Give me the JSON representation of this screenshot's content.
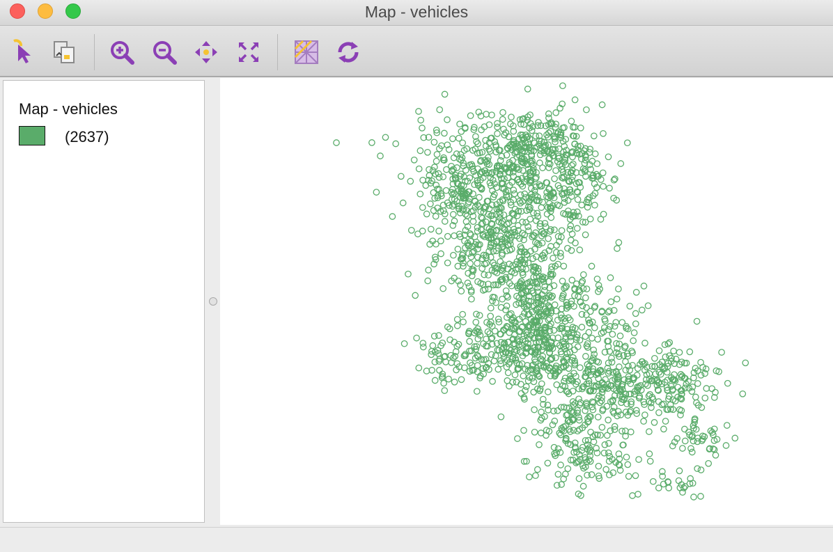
{
  "window": {
    "title": "Map - vehicles"
  },
  "toolbar": {
    "buttons": [
      {
        "icon": "select-pointer-icon",
        "label": "Select"
      },
      {
        "icon": "copy-image-icon",
        "label": "Copy image"
      },
      {
        "icon": "zoom-in-icon",
        "label": "Zoom in"
      },
      {
        "icon": "zoom-out-icon",
        "label": "Zoom out"
      },
      {
        "icon": "pan-icon",
        "label": "Pan"
      },
      {
        "icon": "full-extent-icon",
        "label": "Full extent"
      },
      {
        "icon": "basemap-icon",
        "label": "Base map"
      },
      {
        "icon": "refresh-icon",
        "label": "Refresh"
      }
    ],
    "icon_color": "#8b3fb5",
    "accent_color": "#f5c332"
  },
  "legend": {
    "title": "Map - vehicles",
    "items": [
      {
        "color": "#5aac6a",
        "label": "(2637)"
      }
    ]
  },
  "map": {
    "point_color": "#5aac6a",
    "point_count": 2637,
    "point_style": "hollow-circle"
  }
}
